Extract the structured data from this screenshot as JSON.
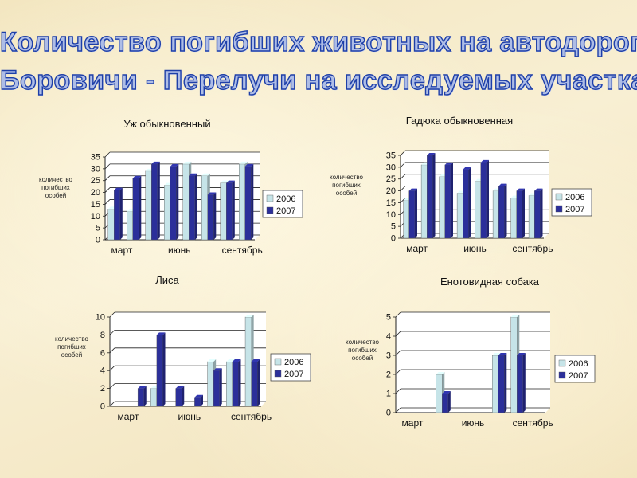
{
  "page": {
    "title_line1": "Количество погибших животных на автодороге",
    "title_line2": "Боровичи - Перелучи на исследуемых участках"
  },
  "colors": {
    "series_2006": "#c6e4e8",
    "series_2007": "#2b2f9a",
    "title_fill": "#aebde6",
    "title_stroke": "#1e3fa8"
  },
  "chart_data": [
    {
      "type": "bar",
      "title": "Уж обыкновенный",
      "ylabel": "количество погибших особей",
      "yticks": [
        "0",
        "5",
        "10",
        "15",
        "20",
        "25",
        "30",
        "35"
      ],
      "ylim": [
        0,
        35
      ],
      "grid": true,
      "legend_placement": "right",
      "xlabels": [
        "март",
        "июнь",
        "сентябрь"
      ],
      "group_count": 8,
      "series": [
        {
          "name": "2006",
          "values": [
            13,
            12,
            29,
            23,
            32,
            27,
            24,
            32
          ]
        },
        {
          "name": "2007",
          "values": [
            21,
            26,
            32,
            31,
            27,
            19,
            24,
            31
          ]
        }
      ]
    },
    {
      "type": "bar",
      "title": "Гадюка обыкновенная",
      "ylabel": "количество погибших особей",
      "yticks": [
        "0",
        "5",
        "10",
        "15",
        "20",
        "25",
        "30",
        "35"
      ],
      "ylim": [
        0,
        35
      ],
      "grid": true,
      "legend_placement": "right",
      "xlabels": [
        "март",
        "июнь",
        "сентябрь"
      ],
      "group_count": 8,
      "series": [
        {
          "name": "2006",
          "values": [
            16,
            31,
            26,
            19,
            24,
            20,
            17,
            18
          ]
        },
        {
          "name": "2007",
          "values": [
            20,
            35,
            31,
            29,
            32,
            22,
            20,
            20
          ]
        }
      ]
    },
    {
      "type": "bar",
      "title": "Лиса",
      "ylabel": "количество погибших особей",
      "yticks": [
        "0",
        "2",
        "4",
        "6",
        "8",
        "10"
      ],
      "ylim": [
        0,
        10
      ],
      "grid": true,
      "legend_placement": "right",
      "xlabels": [
        "март",
        "июнь",
        "сентябрь"
      ],
      "group_count": 8,
      "series": [
        {
          "name": "2006",
          "values": [
            0,
            0,
            2,
            0,
            0,
            5,
            5,
            10
          ]
        },
        {
          "name": "2007",
          "values": [
            0,
            2,
            8,
            2,
            1,
            4,
            5,
            5
          ]
        }
      ]
    },
    {
      "type": "bar",
      "title": "Енотовидная собака",
      "ylabel": "количество погибших особей",
      "yticks": [
        "0",
        "1",
        "2",
        "3",
        "4",
        "5"
      ],
      "ylim": [
        0,
        5
      ],
      "grid": true,
      "legend_placement": "right",
      "xlabels": [
        "март",
        "июнь",
        "сентябрь"
      ],
      "group_count": 8,
      "series": [
        {
          "name": "2006",
          "values": [
            0,
            0,
            2,
            0,
            0,
            3,
            5,
            0
          ]
        },
        {
          "name": "2007",
          "values": [
            0,
            0,
            1,
            0,
            0,
            3,
            3,
            0
          ]
        }
      ]
    }
  ]
}
